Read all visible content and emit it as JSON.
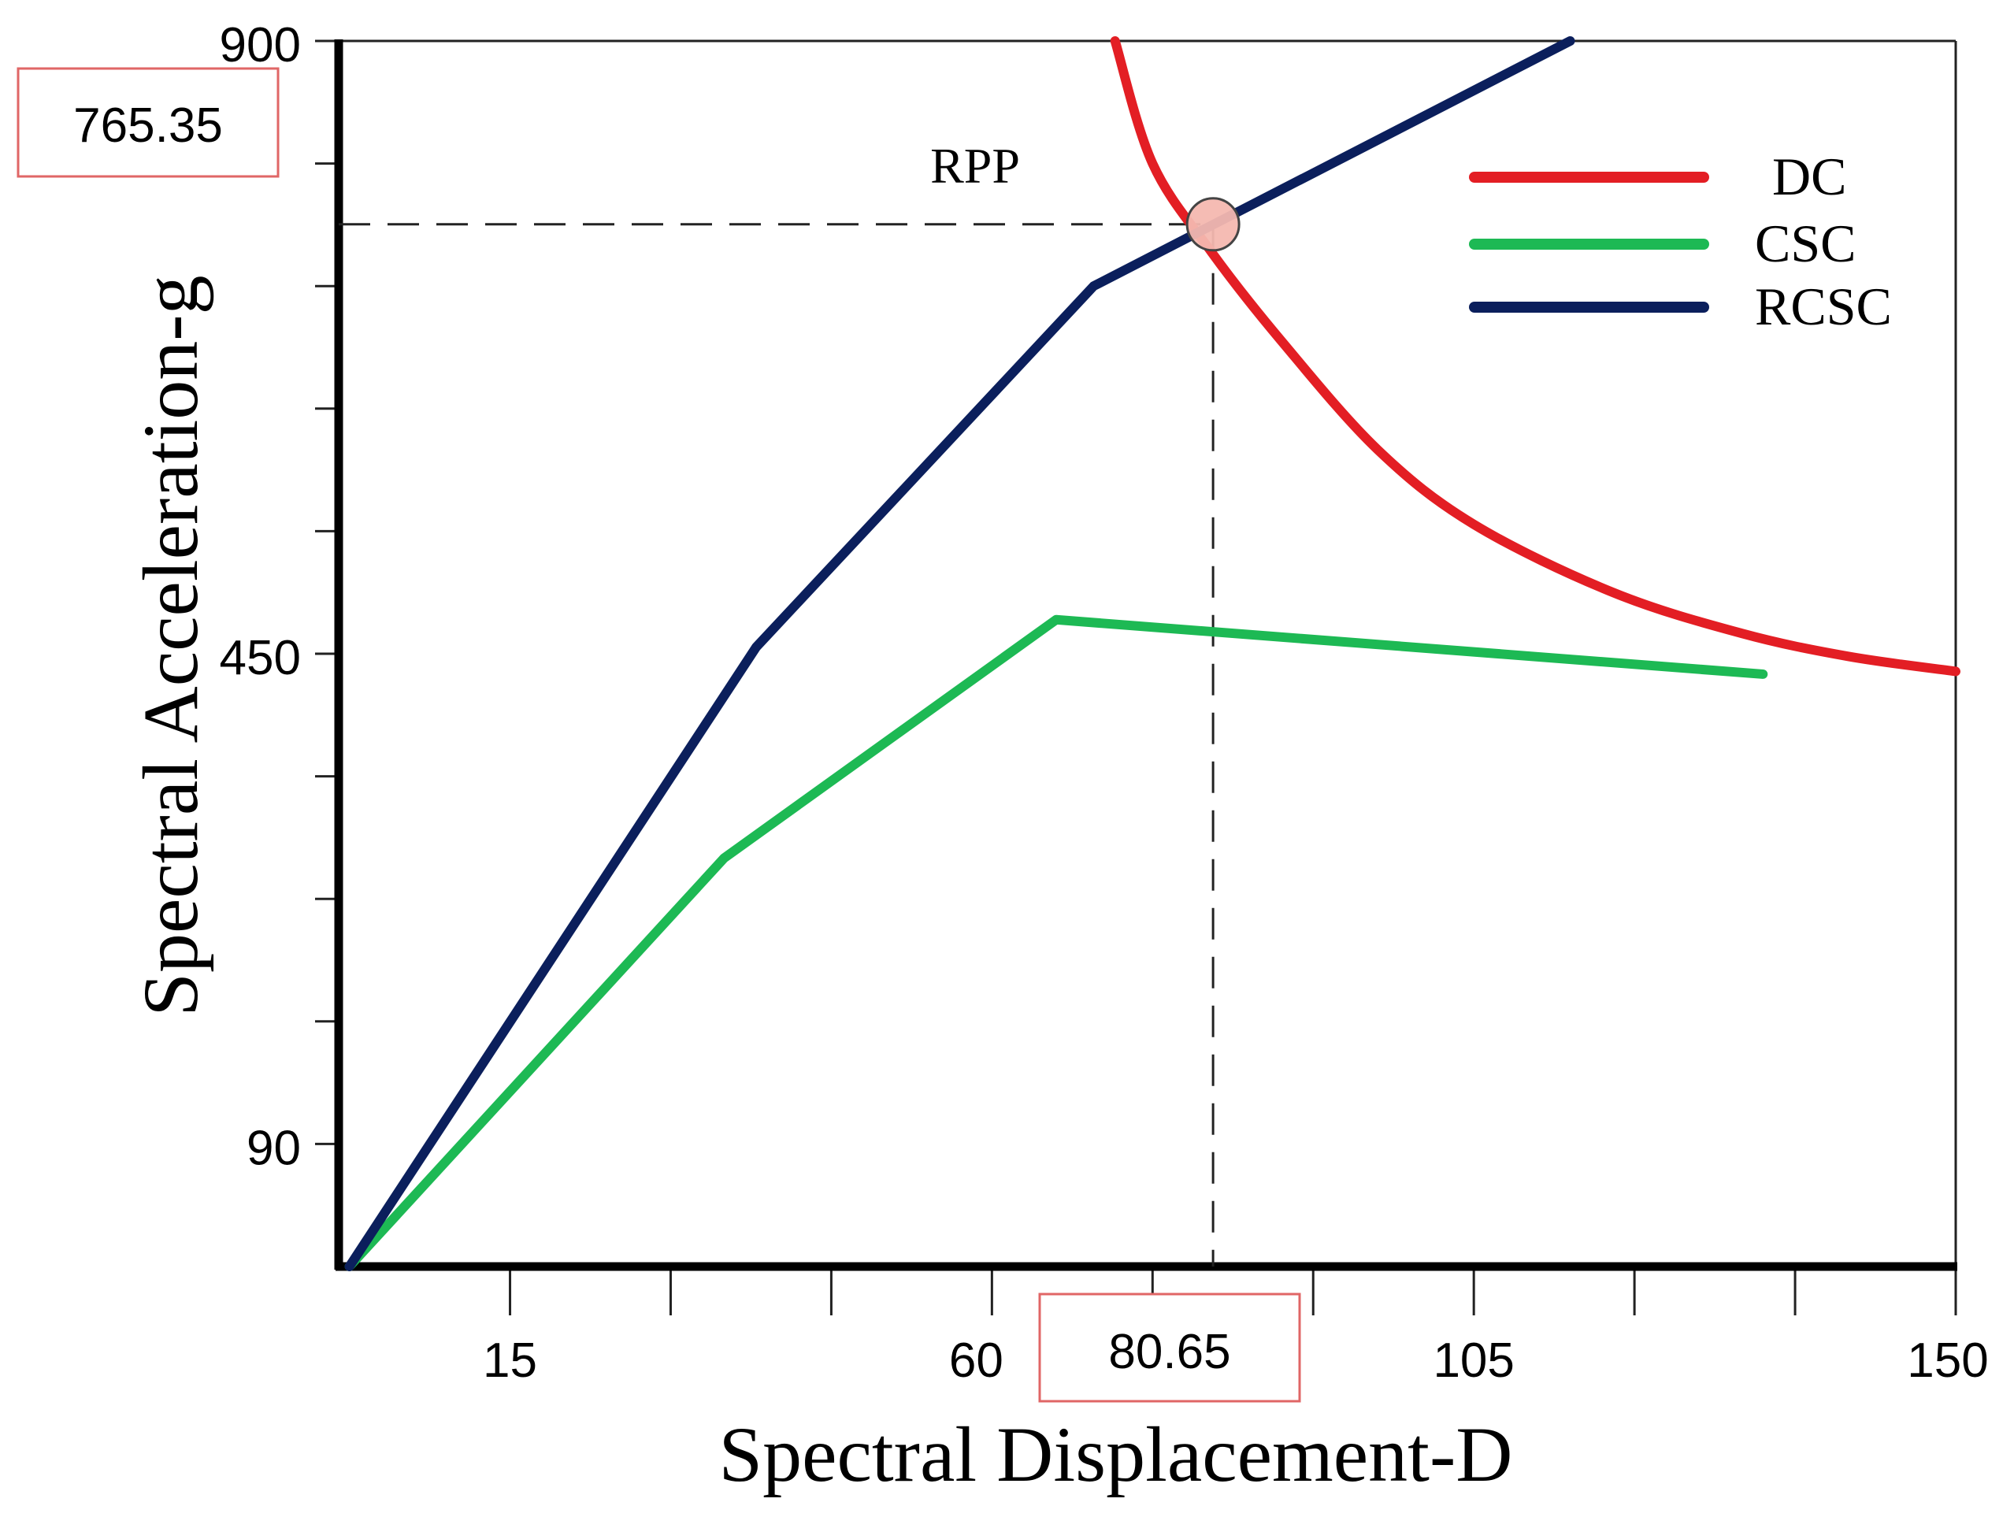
{
  "chart_data": {
    "type": "line",
    "title": "",
    "xlabel": "Spectral Displacement-D",
    "ylabel": "Spectral Acceleration-g",
    "xlim": [
      -1,
      150
    ],
    "ylim": [
      0,
      900
    ],
    "x_tick_labels": [
      "15",
      "60",
      "105",
      "150"
    ],
    "x_tick_values": [
      15,
      60,
      105,
      150
    ],
    "y_tick_labels": [
      "90",
      "450",
      "900"
    ],
    "y_tick_values": [
      90,
      450,
      900
    ],
    "x_minor_ticks": [
      15,
      30,
      45,
      60,
      75,
      90,
      105,
      120,
      135,
      150
    ],
    "y_minor_ticks": [
      90,
      180,
      270,
      360,
      450,
      540,
      630,
      720,
      810,
      900
    ],
    "series": [
      {
        "name": "DC",
        "color": "#e31e24",
        "points": [
          [
            71.5,
            900
          ],
          [
            75,
            810
          ],
          [
            80.5,
            745
          ],
          [
            87,
            680
          ],
          [
            96,
            600
          ],
          [
            105,
            545
          ],
          [
            118,
            495
          ],
          [
            130,
            465
          ],
          [
            140,
            448
          ],
          [
            150,
            437
          ]
        ]
      },
      {
        "name": "CSC",
        "color": "#1db954",
        "points": [
          [
            0,
            0
          ],
          [
            35,
            300
          ],
          [
            66,
            475
          ],
          [
            132,
            435
          ]
        ]
      },
      {
        "name": "RCSC",
        "color": "#0b1f5c",
        "points": [
          [
            0,
            0
          ],
          [
            38,
            455
          ],
          [
            69.5,
            720
          ],
          [
            114,
            900
          ]
        ]
      }
    ],
    "annotations": {
      "point_label": "RPP",
      "point_x": 80.65,
      "point_y": 765.35,
      "x_value_box": "80.65",
      "y_value_box": "765.35",
      "marker_fill": "#f4b8b0",
      "box_border_color": "#e06666"
    },
    "legend_position": "top-right",
    "grid": false
  }
}
